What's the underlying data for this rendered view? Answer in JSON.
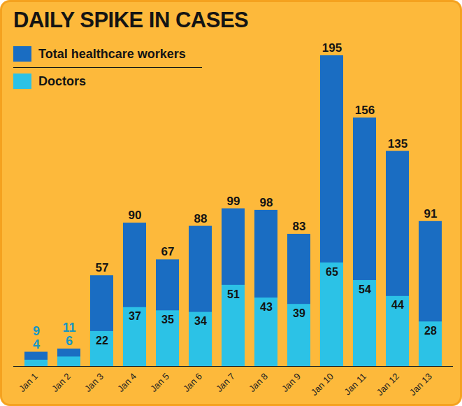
{
  "chart_data": {
    "type": "bar",
    "title": "DAILY SPIKE IN CASES",
    "categories": [
      "Jan 1",
      "Jan 2",
      "Jan 3",
      "Jan 4",
      "Jan 5",
      "Jan 6",
      "Jan 7",
      "Jan 8",
      "Jan 9",
      "Jan 10",
      "Jan 11",
      "Jan 12",
      "Jan 13"
    ],
    "series": [
      {
        "name": "Total healthcare workers",
        "color": "#1a6dc2",
        "values": [
          9,
          11,
          57,
          90,
          67,
          88,
          99,
          98,
          83,
          195,
          156,
          135,
          91
        ]
      },
      {
        "name": "Doctors",
        "color": "#2cc2e6",
        "values": [
          4,
          6,
          22,
          37,
          35,
          34,
          51,
          43,
          39,
          65,
          54,
          44,
          28
        ]
      }
    ],
    "ylim": [
      0,
      195
    ],
    "stacked": false,
    "data_labels": true,
    "tick_labels": "x",
    "legend": "top-left",
    "grid": false
  }
}
